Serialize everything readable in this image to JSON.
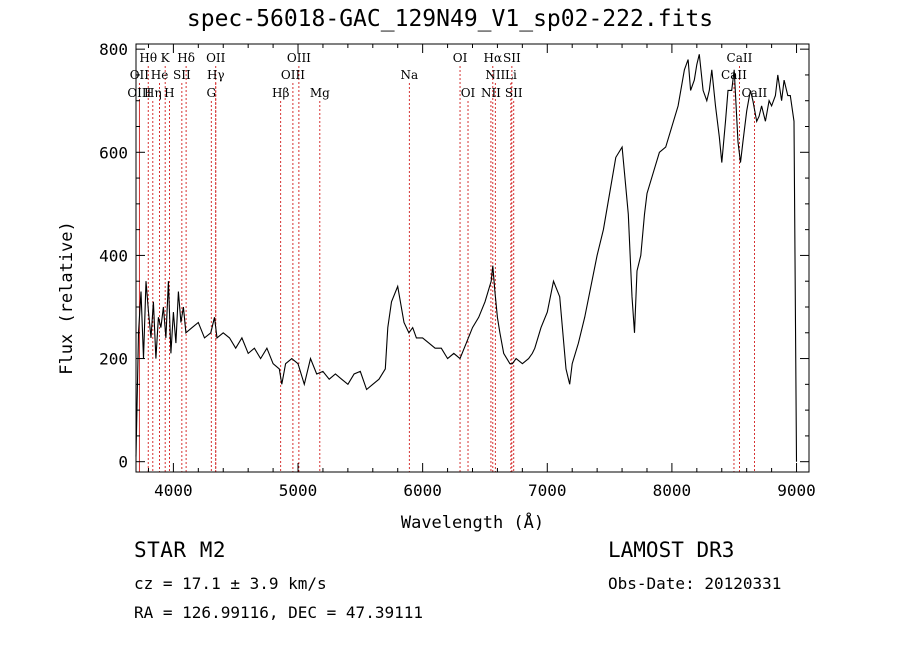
{
  "chart_data": {
    "type": "line",
    "title": "spec-56018-GAC_129N49_V1_sp02-222.fits",
    "xlabel": "Wavelength (Å)",
    "ylabel": "Flux (relative)",
    "xlim": [
      3700,
      9100
    ],
    "ylim": [
      -20,
      810
    ],
    "xticks": [
      4000,
      5000,
      6000,
      7000,
      8000,
      9000
    ],
    "yticks": [
      0,
      200,
      400,
      600,
      800
    ],
    "grid": false,
    "series": [
      {
        "color": "#000000",
        "x": [
          3700,
          3720,
          3740,
          3760,
          3780,
          3800,
          3820,
          3840,
          3860,
          3880,
          3900,
          3920,
          3940,
          3960,
          3980,
          4000,
          4020,
          4040,
          4060,
          4080,
          4100,
          4150,
          4200,
          4250,
          4300,
          4330,
          4350,
          4400,
          4450,
          4500,
          4550,
          4600,
          4650,
          4700,
          4750,
          4800,
          4850,
          4870,
          4900,
          4950,
          5000,
          5050,
          5100,
          5150,
          5200,
          5250,
          5300,
          5350,
          5400,
          5450,
          5500,
          5550,
          5600,
          5650,
          5700,
          5720,
          5750,
          5800,
          5850,
          5890,
          5920,
          5950,
          6000,
          6050,
          6100,
          6150,
          6200,
          6250,
          6300,
          6350,
          6400,
          6450,
          6500,
          6550,
          6563,
          6580,
          6600,
          6620,
          6650,
          6700,
          6720,
          6750,
          6800,
          6850,
          6880,
          6900,
          6950,
          7000,
          7050,
          7100,
          7150,
          7180,
          7200,
          7250,
          7300,
          7350,
          7400,
          7450,
          7500,
          7550,
          7600,
          7620,
          7650,
          7680,
          7700,
          7720,
          7750,
          7780,
          7800,
          7850,
          7900,
          7950,
          8000,
          8050,
          8100,
          8130,
          8150,
          8180,
          8200,
          8220,
          8250,
          8280,
          8300,
          8320,
          8350,
          8380,
          8400,
          8430,
          8450,
          8480,
          8500,
          8530,
          8550,
          8570,
          8600,
          8630,
          8650,
          8680,
          8700,
          8720,
          8750,
          8780,
          8800,
          8830,
          8850,
          8880,
          8900,
          8930,
          8950,
          8980,
          9000
        ],
        "y": [
          10,
          250,
          330,
          200,
          350,
          290,
          240,
          310,
          200,
          280,
          260,
          300,
          240,
          350,
          210,
          290,
          230,
          330,
          270,
          300,
          250,
          260,
          270,
          240,
          250,
          280,
          240,
          250,
          240,
          220,
          240,
          210,
          220,
          200,
          220,
          190,
          180,
          150,
          190,
          200,
          190,
          150,
          200,
          170,
          175,
          160,
          170,
          160,
          150,
          170,
          175,
          140,
          150,
          160,
          180,
          260,
          310,
          340,
          270,
          250,
          260,
          240,
          240,
          230,
          220,
          220,
          200,
          210,
          200,
          230,
          260,
          280,
          310,
          350,
          380,
          330,
          280,
          250,
          210,
          190,
          190,
          200,
          190,
          200,
          210,
          220,
          260,
          290,
          350,
          320,
          180,
          150,
          190,
          230,
          280,
          340,
          400,
          450,
          520,
          590,
          610,
          560,
          480,
          320,
          250,
          370,
          400,
          480,
          520,
          560,
          600,
          610,
          650,
          690,
          760,
          780,
          720,
          740,
          770,
          790,
          720,
          700,
          720,
          760,
          690,
          630,
          580,
          660,
          720,
          720,
          760,
          620,
          580,
          620,
          680,
          720,
          700,
          660,
          670,
          690,
          660,
          700,
          690,
          710,
          750,
          700,
          740,
          710,
          710,
          660,
          0
        ]
      }
    ],
    "spectral_lines": [
      {
        "label": "Hθ",
        "x": 3798,
        "row": 1
      },
      {
        "label": "K",
        "x": 3934,
        "row": 1
      },
      {
        "label": "Hδ",
        "x": 4102,
        "row": 1
      },
      {
        "label": "OII",
        "x": 4340,
        "row": 1
      },
      {
        "label": "OIII",
        "x": 5007,
        "row": 1
      },
      {
        "label": "OI",
        "x": 6300,
        "row": 1
      },
      {
        "label": "Hα",
        "x": 6563,
        "row": 1
      },
      {
        "label": "SII",
        "x": 6716,
        "row": 1
      },
      {
        "label": "CaII",
        "x": 8542,
        "row": 1
      },
      {
        "label": "OII",
        "x": 3727,
        "row": 2
      },
      {
        "label": "He",
        "x": 3889,
        "row": 2
      },
      {
        "label": "SII",
        "x": 4068,
        "row": 2
      },
      {
        "label": "Hγ",
        "x": 4340,
        "row": 2
      },
      {
        "label": "OIII",
        "x": 4959,
        "row": 2
      },
      {
        "label": "Na",
        "x": 5893,
        "row": 2
      },
      {
        "label": "NII",
        "x": 6583,
        "row": 2
      },
      {
        "label": "Li",
        "x": 6708,
        "row": 2
      },
      {
        "label": "CaII",
        "x": 8498,
        "row": 2
      },
      {
        "label": "OIII",
        "x": 3727,
        "row": 3
      },
      {
        "label": "Hη",
        "x": 3835,
        "row": 3
      },
      {
        "label": "H",
        "x": 3968,
        "row": 3
      },
      {
        "label": "G",
        "x": 4304,
        "row": 3
      },
      {
        "label": "Hβ",
        "x": 4861,
        "row": 3
      },
      {
        "label": "Mg",
        "x": 5175,
        "row": 3
      },
      {
        "label": "OI",
        "x": 6364,
        "row": 3
      },
      {
        "label": "NII",
        "x": 6548,
        "row": 3
      },
      {
        "label": "SII",
        "x": 6731,
        "row": 3
      },
      {
        "label": "CaII",
        "x": 8662,
        "row": 3
      }
    ],
    "spectral_line_color": "#cc0000"
  },
  "footer": {
    "class_line": "STAR    M2",
    "survey": "LAMOST DR3",
    "cz_line": "cz = 17.1 ± 3.9 km/s",
    "obs_date": "Obs-Date: 20120331",
    "radec_line": "RA = 126.99116, DEC =  47.39111"
  }
}
